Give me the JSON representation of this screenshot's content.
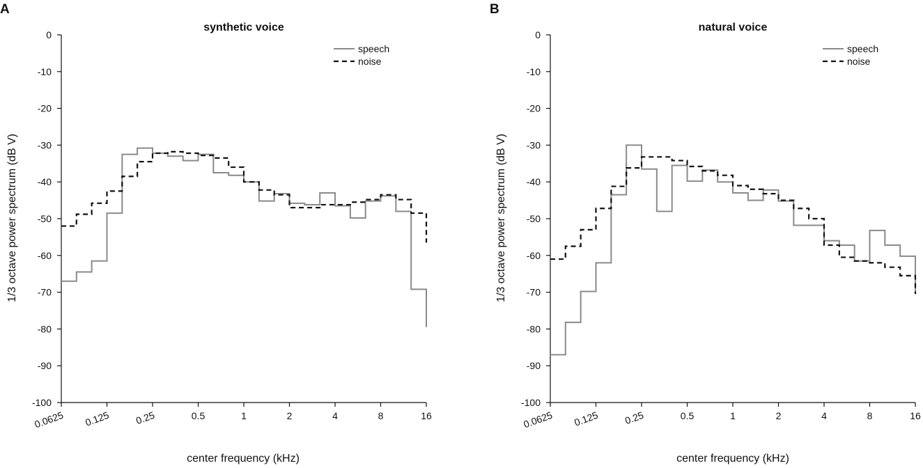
{
  "chart_data": [
    {
      "type": "line",
      "panel_label": "A",
      "title": "synthetic voice",
      "xlabel": "center frequency (kHz)",
      "ylabel": "1/3 octave power spectrum (dB V)",
      "ylim": [
        -100,
        0
      ],
      "yticks": [
        0,
        -10,
        -20,
        -30,
        -40,
        -50,
        -60,
        -70,
        -80,
        -90,
        -100
      ],
      "x_scale": "log2",
      "xlim": [
        0.0625,
        16
      ],
      "xticks": [
        0.0625,
        0.125,
        0.25,
        0.5,
        1,
        2,
        4,
        8,
        16
      ],
      "xtick_labels": [
        "0.0625",
        "0.125",
        "0.25",
        "0.5",
        "1",
        "2",
        "4",
        "8",
        "16"
      ],
      "legend_position": "top-right",
      "bin_edges_khz": [
        0.0625,
        0.0787,
        0.0992,
        0.125,
        0.1575,
        0.1984,
        0.25,
        0.315,
        0.3969,
        0.5,
        0.63,
        0.7937,
        1,
        1.26,
        1.5874,
        2,
        2.52,
        3.1748,
        4,
        5.04,
        6.3496,
        8,
        10.08,
        12.6992,
        16
      ],
      "series": [
        {
          "name": "speech",
          "style": "solid",
          "color": "#8a8a8a",
          "values": [
            -67,
            -64.5,
            -61.5,
            -48.5,
            -32.5,
            -30.8,
            -32.2,
            -33,
            -34.2,
            -32.5,
            -37.5,
            -38.2,
            -40,
            -45.2,
            -43.2,
            -45.8,
            -46.2,
            -43,
            -46.5,
            -49.8,
            -45.2,
            -43.8,
            -48,
            -69.2
          ],
          "end_value": -79.5
        },
        {
          "name": "noise",
          "style": "dashed",
          "color": "#111111",
          "values": [
            -52,
            -48.8,
            -45.8,
            -42.5,
            -38.5,
            -34.5,
            -32.2,
            -31.8,
            -32.2,
            -32.8,
            -33.5,
            -36,
            -40,
            -42.2,
            -43.5,
            -47,
            -47,
            -46.2,
            -46.2,
            -45.5,
            -44.8,
            -43.5,
            -44.8,
            -48.5
          ],
          "end_value": -56.5
        }
      ]
    },
    {
      "type": "line",
      "panel_label": "B",
      "title": "natural voice",
      "xlabel": "center frequency (kHz)",
      "ylabel": "1/3 octave power spectrum (dB V)",
      "ylim": [
        -100,
        0
      ],
      "yticks": [
        0,
        -10,
        -20,
        -30,
        -40,
        -50,
        -60,
        -70,
        -80,
        -90,
        -100
      ],
      "x_scale": "log2",
      "xlim": [
        0.0625,
        16
      ],
      "xticks": [
        0.0625,
        0.125,
        0.25,
        0.5,
        1,
        2,
        4,
        8,
        16
      ],
      "xtick_labels": [
        "0.0625",
        "0.125",
        "0.25",
        "0.5",
        "1",
        "2",
        "4",
        "8",
        "16"
      ],
      "legend_position": "top-right",
      "bin_edges_khz": [
        0.0625,
        0.0787,
        0.0992,
        0.125,
        0.1575,
        0.1984,
        0.25,
        0.315,
        0.3969,
        0.5,
        0.63,
        0.7937,
        1,
        1.26,
        1.5874,
        2,
        2.52,
        3.1748,
        4,
        5.04,
        6.3496,
        8,
        10.08,
        12.6992,
        16
      ],
      "series": [
        {
          "name": "speech",
          "style": "solid",
          "color": "#8a8a8a",
          "values": [
            -87,
            -78.2,
            -69.8,
            -62,
            -43.5,
            -30,
            -36.5,
            -48,
            -35.5,
            -39.8,
            -36.8,
            -40,
            -43,
            -45,
            -42.2,
            -45.2,
            -51.8,
            -51.8,
            -56,
            -57.2,
            -61.5,
            -53.2,
            -57.2,
            -60.2
          ],
          "end_value": -70
        },
        {
          "name": "noise",
          "style": "dashed",
          "color": "#111111",
          "values": [
            -61,
            -57.5,
            -53,
            -47.2,
            -41.2,
            -36.2,
            -33.2,
            -33.2,
            -34.2,
            -35.8,
            -37,
            -38.2,
            -41,
            -42,
            -43.2,
            -45,
            -47.2,
            -50,
            -57.2,
            -60.5,
            -61.5,
            -62,
            -63.2,
            -65.5
          ],
          "end_value": -70.5
        }
      ]
    }
  ]
}
